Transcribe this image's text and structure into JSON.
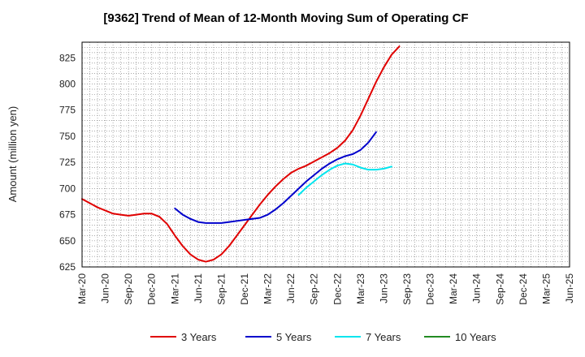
{
  "chart_data": {
    "type": "line",
    "title": "[9362]  Trend of Mean of 12-Month Moving Sum of Operating CF",
    "xlabel": "",
    "ylabel": "Amount (million yen)",
    "ylim": [
      625,
      840
    ],
    "yticks": [
      625,
      650,
      675,
      700,
      725,
      750,
      775,
      800,
      825
    ],
    "grid": true,
    "legend_position": "bottom",
    "x_labels": [
      "Mar-20",
      "Jun-20",
      "Sep-20",
      "Dec-20",
      "Mar-21",
      "Jun-21",
      "Sep-21",
      "Dec-21",
      "Mar-22",
      "Jun-22",
      "Sep-22",
      "Dec-22",
      "Mar-23",
      "Jun-23",
      "Sep-23",
      "Dec-23",
      "Mar-24",
      "Jun-24",
      "Sep-24",
      "Dec-24",
      "Mar-25",
      "Jun-25"
    ],
    "series": [
      {
        "name": "3 Years",
        "color": "#e00000",
        "start_index": 0,
        "values": [
          690,
          686,
          682,
          679,
          676,
          675,
          674,
          675,
          676,
          676,
          673,
          666,
          655,
          645,
          637,
          632,
          630,
          632,
          637,
          645,
          655,
          665,
          675,
          685,
          694,
          702,
          709,
          715,
          719,
          722,
          726,
          730,
          734,
          739,
          746,
          756,
          770,
          786,
          802,
          816,
          828,
          836
        ]
      },
      {
        "name": "5 Years",
        "color": "#0000cc",
        "start_index": 12,
        "values": [
          681,
          675,
          671,
          668,
          667,
          667,
          667,
          668,
          669,
          670,
          671,
          672,
          675,
          680,
          686,
          693,
          700,
          707,
          713,
          719,
          724,
          728,
          731,
          733,
          737,
          744,
          754
        ]
      },
      {
        "name": "7 Years",
        "color": "#00e5ee",
        "start_index": 28,
        "values": [
          694,
          701,
          707,
          713,
          718,
          722,
          724,
          723,
          720,
          718,
          718,
          719,
          721
        ]
      },
      {
        "name": "10 Years",
        "color": "#228b22",
        "start_index": 0,
        "values": []
      }
    ]
  }
}
